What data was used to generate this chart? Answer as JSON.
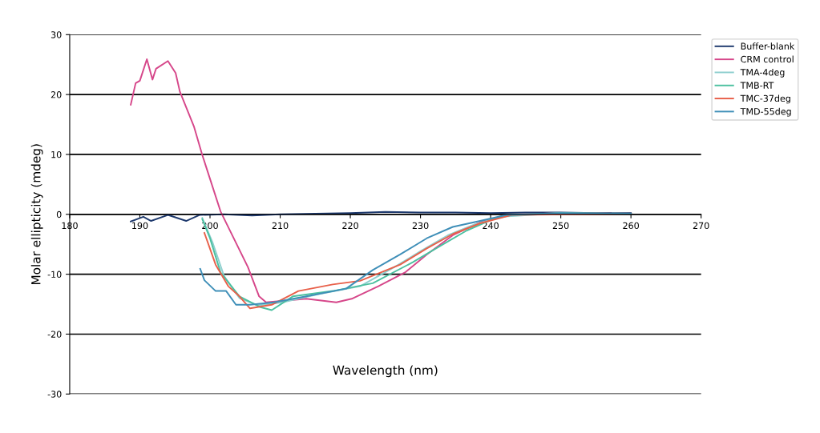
{
  "chart_data": {
    "type": "line",
    "xlabel": "Wavelength (nm)",
    "ylabel": "Molar ellipticity (mdeg)",
    "xlim": [
      180,
      270
    ],
    "xticks": [
      180,
      190,
      200,
      210,
      220,
      230,
      240,
      250,
      260,
      270
    ],
    "ylim": [
      -30,
      30
    ],
    "yticks": [
      -30,
      -20,
      -10,
      0,
      10,
      20,
      30
    ],
    "grid": "y",
    "legend": "top right",
    "marker": "none",
    "line_style": "solid",
    "series": [
      {
        "name": "Buffer-blank",
        "color": "#1f3a6e",
        "x": [
          188.7,
          190.5,
          191.6,
          194,
          196.6,
          198.5,
          202,
          206,
          210,
          215,
          220,
          225,
          230,
          235,
          240,
          245,
          250,
          255,
          260
        ],
        "values": [
          -1.2,
          -0.4,
          -1.1,
          -0.1,
          -1.1,
          -0.1,
          0,
          -0.2,
          0,
          0.1,
          0.2,
          0.4,
          0.3,
          0.3,
          0.2,
          0.3,
          0.3,
          0.2,
          0.2
        ]
      },
      {
        "name": "CRM control",
        "color": "#d6478a",
        "x": [
          188.7,
          189.4,
          190,
          191,
          191.8,
          192.3,
          194,
          195.1,
          195.7,
          197.7,
          198.9,
          201.5,
          205.4,
          207,
          208,
          213.7,
          218,
          220.2,
          224,
          227.8,
          230.9,
          234.6,
          238.5,
          242.3,
          250,
          260
        ],
        "values": [
          18.3,
          21.9,
          22.3,
          25.9,
          22.5,
          24.3,
          25.6,
          23.6,
          20.5,
          14.7,
          9.9,
          0.5,
          -8.8,
          -13.7,
          -14.7,
          -14.1,
          -14.7,
          -14.1,
          -12,
          -9.7,
          -6.7,
          -3.5,
          -1.3,
          -0.1,
          0.2,
          0.1
        ]
      },
      {
        "name": "TMA-4deg",
        "color": "#8fcfcf",
        "x": [
          198.9,
          200.4,
          202,
          204.2,
          206.9,
          210.3,
          215.6,
          221.4,
          226.3,
          230.1,
          233.9,
          237.7,
          241.5,
          250,
          260
        ],
        "values": [
          -0.6,
          -4.8,
          -10.3,
          -14,
          -15.2,
          -14.7,
          -13.3,
          -12,
          -8.8,
          -6.1,
          -3.5,
          -1.7,
          -0.4,
          0.2,
          0.1
        ]
      },
      {
        "name": "TMB-RT",
        "color": "#4cc0a0",
        "x": [
          198.9,
          200,
          201.5,
          204.2,
          207.2,
          208.8,
          211.8,
          217.5,
          223.2,
          228.9,
          232.8,
          236.6,
          240.3,
          243,
          250,
          260
        ],
        "values": [
          -0.8,
          -4,
          -9.7,
          -13.7,
          -15.5,
          -16,
          -13.7,
          -12.8,
          -11.5,
          -8,
          -5.3,
          -2.7,
          -0.8,
          -0.1,
          0.2,
          0.1
        ]
      },
      {
        "name": "TMC-37deg",
        "color": "#e8604a",
        "x": [
          199.2,
          200.8,
          202.6,
          204.2,
          205.7,
          208.8,
          212.6,
          217.5,
          221.4,
          227.1,
          230.9,
          234.6,
          238.5,
          243,
          260
        ],
        "values": [
          -3.1,
          -8.4,
          -12,
          -13.7,
          -15.7,
          -15.1,
          -12.8,
          -11.7,
          -11.1,
          -8.4,
          -5.7,
          -3.3,
          -1.5,
          -0.1,
          0.1
        ]
      },
      {
        "name": "TMD-55deg",
        "color": "#3f8fb8",
        "x": [
          198.6,
          199.2,
          200.8,
          202.3,
          203.7,
          205.7,
          209.1,
          213.7,
          219.4,
          223.2,
          227.1,
          230.9,
          234.6,
          238.5,
          242.3,
          250,
          260
        ],
        "values": [
          -9.1,
          -11,
          -12.8,
          -12.8,
          -15.1,
          -15.1,
          -14.7,
          -13.7,
          -12.4,
          -9.3,
          -6.7,
          -4,
          -2.1,
          -1.1,
          -0.1,
          0.2,
          0.1
        ]
      }
    ]
  }
}
